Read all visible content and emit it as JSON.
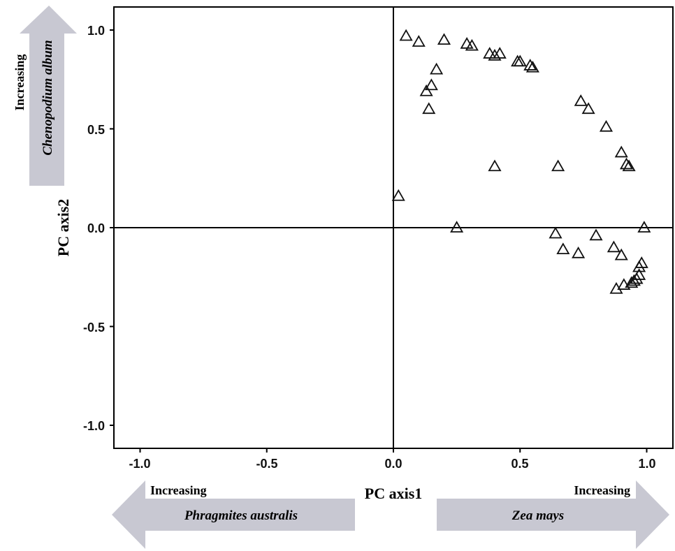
{
  "chart_data": {
    "type": "scatter",
    "xlabel": "PC axis1",
    "ylabel": "PC axis2",
    "xlim": [
      -1.1,
      1.1
    ],
    "ylim": [
      -1.1,
      1.1
    ],
    "x_ticks": [
      "-1.0",
      "-0.5",
      "0.0",
      "0.5",
      "1.0"
    ],
    "y_ticks": [
      "1.0",
      "0.5",
      "0.0",
      "-0.5",
      "-1.0"
    ],
    "grid": false,
    "marker": "open-triangle",
    "points": [
      {
        "x": 0.05,
        "y": 0.97
      },
      {
        "x": 0.1,
        "y": 0.94
      },
      {
        "x": 0.2,
        "y": 0.95
      },
      {
        "x": 0.29,
        "y": 0.93
      },
      {
        "x": 0.31,
        "y": 0.92
      },
      {
        "x": 0.38,
        "y": 0.88
      },
      {
        "x": 0.4,
        "y": 0.87
      },
      {
        "x": 0.42,
        "y": 0.88
      },
      {
        "x": 0.49,
        "y": 0.84
      },
      {
        "x": 0.5,
        "y": 0.84
      },
      {
        "x": 0.54,
        "y": 0.82
      },
      {
        "x": 0.55,
        "y": 0.81
      },
      {
        "x": 0.17,
        "y": 0.8
      },
      {
        "x": 0.15,
        "y": 0.72
      },
      {
        "x": 0.13,
        "y": 0.69
      },
      {
        "x": 0.14,
        "y": 0.6
      },
      {
        "x": 0.74,
        "y": 0.64
      },
      {
        "x": 0.77,
        "y": 0.6
      },
      {
        "x": 0.84,
        "y": 0.51
      },
      {
        "x": 0.9,
        "y": 0.38
      },
      {
        "x": 0.92,
        "y": 0.32
      },
      {
        "x": 0.93,
        "y": 0.31
      },
      {
        "x": 0.4,
        "y": 0.31
      },
      {
        "x": 0.65,
        "y": 0.31
      },
      {
        "x": 0.02,
        "y": 0.16
      },
      {
        "x": 0.25,
        "y": 0.0
      },
      {
        "x": 0.99,
        "y": 0.0
      },
      {
        "x": 0.64,
        "y": -0.03
      },
      {
        "x": 0.67,
        "y": -0.11
      },
      {
        "x": 0.73,
        "y": -0.13
      },
      {
        "x": 0.8,
        "y": -0.04
      },
      {
        "x": 0.87,
        "y": -0.1
      },
      {
        "x": 0.9,
        "y": -0.14
      },
      {
        "x": 0.98,
        "y": -0.18
      },
      {
        "x": 0.97,
        "y": -0.2
      },
      {
        "x": 0.97,
        "y": -0.24
      },
      {
        "x": 0.96,
        "y": -0.26
      },
      {
        "x": 0.95,
        "y": -0.27
      },
      {
        "x": 0.94,
        "y": -0.28
      },
      {
        "x": 0.91,
        "y": -0.29
      },
      {
        "x": 0.88,
        "y": -0.31
      }
    ]
  },
  "arrows": {
    "left": {
      "label": "Increasing",
      "species": "Phragmites australis"
    },
    "right": {
      "label": "Increasing",
      "species": "Zea mays"
    },
    "top": {
      "label": "Increasing",
      "species": "Chenopodium album"
    }
  },
  "colors": {
    "arrow_fill": "#c8c8d2",
    "marker_stroke": "#111111",
    "axis": "#000000"
  }
}
